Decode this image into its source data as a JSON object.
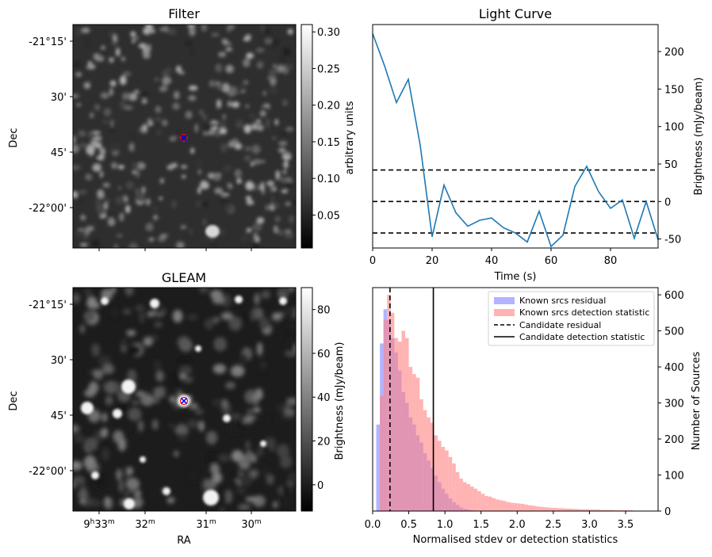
{
  "colors": {
    "line": "#1f77b4",
    "known_residual": "#8080ff",
    "known_detection": "#ff8080",
    "candidate_marker_cross": "#0000ff",
    "candidate_marker_circle": "#ff0000"
  },
  "chart_data": [
    {
      "type": "heatmap",
      "title": "Filter",
      "ylabel": "Dec",
      "y_ticks": [
        "-21°15'",
        "30'",
        "45'",
        "-22°00'"
      ],
      "colorbar": {
        "label": "arbitrary units",
        "ticks": [
          "0.05",
          "0.10",
          "0.15",
          "0.20",
          "0.25",
          "0.30"
        ],
        "values": [
          0.05,
          0.1,
          0.15,
          0.2,
          0.25,
          0.3
        ],
        "range": [
          0.005,
          0.31
        ]
      },
      "colormap": "gray"
    },
    {
      "type": "heatmap",
      "title": "GLEAM",
      "xlabel": "RA",
      "ylabel": "Dec",
      "x_ticks": [
        "9h33m",
        "32m",
        "31m",
        "30m"
      ],
      "y_ticks": [
        "-21°15'",
        "30'",
        "45'",
        "-22°00'"
      ],
      "colorbar": {
        "label": "Brightness (mJy/beam)",
        "ticks": [
          "0",
          "20",
          "40",
          "60",
          "80"
        ],
        "values": [
          0,
          20,
          40,
          60,
          80
        ],
        "range": [
          -12,
          90
        ]
      },
      "colormap": "gray"
    },
    {
      "type": "line",
      "title": "Light Curve",
      "xlabel": "Time (s)",
      "ylabel": "Brightness (mJy/beam)",
      "xlim": [
        0,
        96
      ],
      "ylim": [
        -62,
        236
      ],
      "x_ticks": [
        0,
        20,
        40,
        60,
        80
      ],
      "y_ticks": [
        -50,
        0,
        50,
        100,
        150,
        200
      ],
      "x": [
        0,
        4,
        8,
        12,
        16,
        20,
        24,
        28,
        32,
        36,
        40,
        44,
        48,
        52,
        56,
        60,
        64,
        68,
        72,
        76,
        80,
        84,
        88,
        92,
        96
      ],
      "series": [
        {
          "values": [
            224,
            181,
            132,
            163,
            75,
            -47,
            22,
            -15,
            -33,
            -25,
            -22,
            -35,
            -42,
            -54,
            -13,
            -60,
            -45,
            20,
            47,
            13,
            -9,
            2,
            -49,
            0,
            -51
          ]
        }
      ],
      "hlines": [
        42,
        0,
        -42
      ],
      "y_axis_side": "right"
    },
    {
      "type": "bar",
      "xlabel": "Normalised stdev or detection statistics",
      "ylabel": "Number of Sources",
      "xlim": [
        0,
        3.95
      ],
      "ylim": [
        0,
        620
      ],
      "x_ticks": [
        0.0,
        0.5,
        1.0,
        1.5,
        2.0,
        2.5,
        3.0,
        3.5
      ],
      "x_tick_labels": [
        "0.0",
        "0.5",
        "1.0",
        "1.5",
        "2.0",
        "2.5",
        "3.0",
        "3.5"
      ],
      "y_ticks": [
        0,
        100,
        200,
        300,
        400,
        500,
        600
      ],
      "y_axis_side": "right",
      "bin_width": 0.05,
      "series": [
        {
          "name": "Known srcs residual",
          "start": 0.0,
          "values": [
            0,
            240,
            465,
            560,
            530,
            480,
            440,
            390,
            330,
            300,
            260,
            240,
            210,
            190,
            160,
            140,
            120,
            98,
            80,
            62,
            48,
            35,
            25,
            17,
            10,
            6,
            4,
            2,
            1,
            0
          ]
        },
        {
          "name": "Known srcs detection statistic",
          "start": 0.1,
          "values": [
            320,
            530,
            600,
            550,
            480,
            470,
            500,
            480,
            400,
            380,
            370,
            310,
            280,
            260,
            245,
            210,
            195,
            178,
            168,
            150,
            132,
            108,
            90,
            80,
            75,
            68,
            62,
            55,
            48,
            42,
            40,
            36,
            32,
            30,
            28,
            25,
            23,
            22,
            21,
            20,
            18,
            16,
            15,
            13,
            12,
            11,
            10,
            9,
            9,
            8,
            8,
            7,
            7,
            6,
            6,
            5,
            5,
            5,
            4,
            4,
            4,
            3,
            3,
            3,
            3,
            2,
            2,
            2,
            2,
            2,
            1,
            1,
            1
          ]
        }
      ],
      "vlines": [
        {
          "name": "Candidate residual",
          "x": 0.24,
          "style": "dashed"
        },
        {
          "name": "Candidate detection statistic",
          "x": 0.84,
          "style": "solid"
        }
      ],
      "legend": "top-right"
    }
  ]
}
